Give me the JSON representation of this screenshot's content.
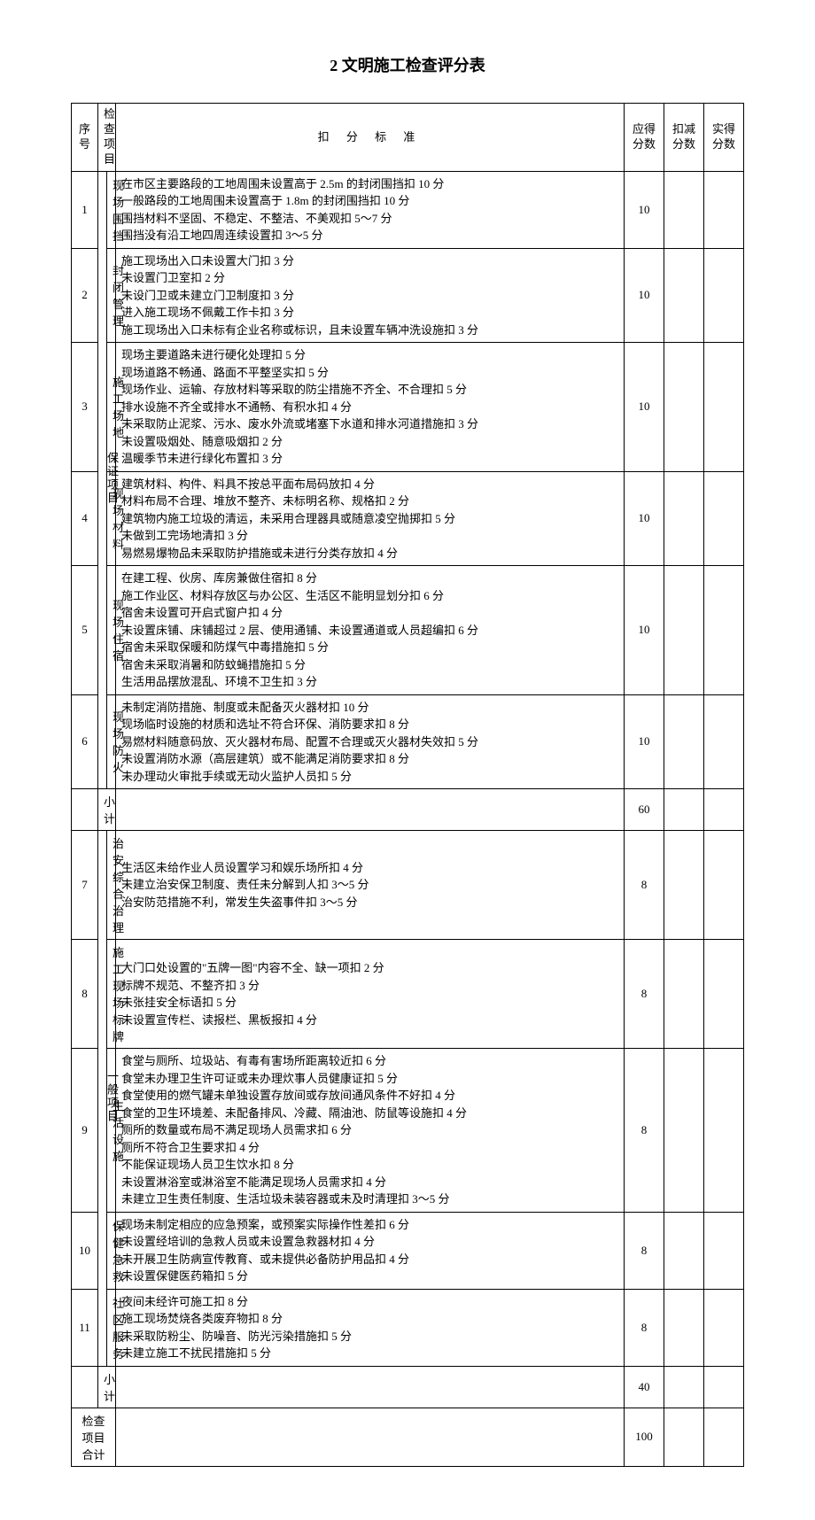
{
  "title": "2 文明施工检查评分表",
  "headers": {
    "seq": "序号",
    "item": "检查项目",
    "criteria": "扣 分 标 准",
    "expected": "应得分数",
    "deduct": "扣减分数",
    "actual": "实得分数"
  },
  "categories": {
    "guarantee": "保证项目",
    "general": "一般项目"
  },
  "rows": [
    {
      "seq": "1",
      "item": "现场围挡",
      "criteria": "在市区主要路段的工地周围未设置高于 2.5m 的封闭围挡扣 10 分\n一般路段的工地周围未设置高于 1.8m 的封闭围挡扣 10 分\n围挡材料不坚固、不稳定、不整洁、不美观扣 5～7 分\n围挡没有沿工地四周连续设置扣 3～5 分",
      "score": "10"
    },
    {
      "seq": "2",
      "item": "封闭管理",
      "criteria": "施工现场出入口未设置大门扣 3 分\n未设置门卫室扣 2 分\n未设门卫或未建立门卫制度扣 3 分\n进入施工现场不佩戴工作卡扣 3 分\n施工现场出入口未标有企业名称或标识，且未设置车辆冲洗设施扣 3 分",
      "score": "10"
    },
    {
      "seq": "3",
      "item": "施工场地",
      "criteria": "现场主要道路未进行硬化处理扣 5 分\n现场道路不畅通、路面不平整坚实扣 5 分\n现场作业、运输、存放材料等采取的防尘措施不齐全、不合理扣 5 分\n排水设施不齐全或排水不通畅、有积水扣 4 分\n未采取防止泥浆、污水、废水外流或堵塞下水道和排水河道措施扣 3 分\n未设置吸烟处、随意吸烟扣 2 分\n温暖季节未进行绿化布置扣 3 分",
      "score": "10"
    },
    {
      "seq": "4",
      "item": "现场材料",
      "criteria": "建筑材料、构件、料具不按总平面布局码放扣 4 分\n材料布局不合理、堆放不整齐、未标明名称、规格扣 2 分\n建筑物内施工垃圾的清运，未采用合理器具或随意凌空抛掷扣 5 分\n未做到工完场地清扣 3 分\n易燃易爆物品未采取防护措施或未进行分类存放扣 4 分",
      "score": "10"
    },
    {
      "seq": "5",
      "item": "现场住宿",
      "criteria": "在建工程、伙房、库房兼做住宿扣 8 分\n施工作业区、材料存放区与办公区、生活区不能明显划分扣 6 分\n宿舍未设置可开启式窗户扣 4 分\n未设置床铺、床铺超过 2 层、使用通铺、未设置通道或人员超编扣 6 分\n宿舍未采取保暖和防煤气中毒措施扣 5 分\n宿舍未采取消暑和防蚊蝇措施扣 5 分\n生活用品摆放混乱、环境不卫生扣 3 分",
      "score": "10"
    },
    {
      "seq": "6",
      "item": "现场防火",
      "criteria": "未制定消防措施、制度或未配备灭火器材扣 10 分\n现场临时设施的材质和选址不符合环保、消防要求扣 8 分\n易燃材料随意码放、灭火器材布局、配置不合理或灭火器材失效扣 5 分\n未设置消防水源（高层建筑）或不能满足消防要求扣 8 分\n未办理动火审批手续或无动火监护人员扣 5 分",
      "score": "10"
    }
  ],
  "subtotal1": {
    "label": "小计",
    "score": "60"
  },
  "rows2": [
    {
      "seq": "7",
      "item": "治安综合治理",
      "criteria": "生活区未给作业人员设置学习和娱乐场所扣 4 分\n未建立治安保卫制度、责任未分解到人扣 3～5 分\n治安防范措施不利，常发生失盗事件扣 3～5 分",
      "score": "8"
    },
    {
      "seq": "8",
      "item": "施工现场标牌",
      "criteria": "大门口处设置的\"五牌一图\"内容不全、缺一项扣 2 分\n标牌不规范、不整齐扣 3 分\n未张挂安全标语扣 5 分\n未设置宣传栏、读报栏、黑板报扣 4 分",
      "score": "8"
    },
    {
      "seq": "9",
      "item": "生活设施",
      "criteria": "食堂与厕所、垃圾站、有毒有害场所距离较近扣 6 分\n食堂未办理卫生许可证或未办理炊事人员健康证扣 5 分\n食堂使用的燃气罐未单独设置存放间或存放间通风条件不好扣 4 分\n食堂的卫生环境差、未配备排风、冷藏、隔油池、防鼠等设施扣 4 分\n厕所的数量或布局不满足现场人员需求扣 6 分\n厕所不符合卫生要求扣 4 分\n不能保证现场人员卫生饮水扣 8 分\n未设置淋浴室或淋浴室不能满足现场人员需求扣 4 分\n未建立卫生责任制度、生活垃圾未装容器或未及时清理扣 3～5 分",
      "score": "8"
    },
    {
      "seq": "10",
      "item": "保健急救",
      "criteria": "现场未制定相应的应急预案，或预案实际操作性差扣 6 分\n未设置经培训的急救人员或未设置急救器材扣 4 分\n未开展卫生防病宣传教育、或未提供必备防护用品扣 4 分\n未设置保健医药箱扣 5 分",
      "score": "8"
    },
    {
      "seq": "11",
      "item": "社区服务",
      "criteria": "夜间未经许可施工扣 8 分\n施工现场焚烧各类废弃物扣 8 分\n未采取防粉尘、防噪音、防光污染措施扣 5 分\n未建立施工不扰民措施扣 5 分",
      "score": "8"
    }
  ],
  "subtotal2": {
    "label": "小计",
    "score": "40"
  },
  "total": {
    "label": "检查项目合计",
    "score": "100"
  }
}
